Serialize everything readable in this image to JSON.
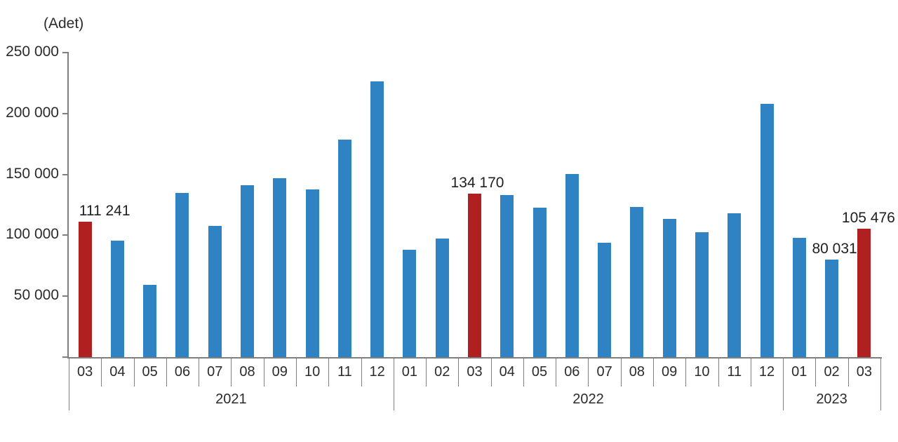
{
  "chart_data": {
    "type": "bar",
    "title": "",
    "unit_label": "(Adet)",
    "ylim": [
      0,
      250000
    ],
    "grid": false,
    "legend": null,
    "colors": {
      "bar": "#3083c3",
      "highlight": "#b02020",
      "axis": "#7f7f7f",
      "text": "#2b2b2b"
    },
    "yticks": [
      {
        "value": 50000,
        "label": "50 000"
      },
      {
        "value": 100000,
        "label": "100 000"
      },
      {
        "value": 150000,
        "label": "150 000"
      },
      {
        "value": 200000,
        "label": "200 000"
      },
      {
        "value": 250000,
        "label": "250 000"
      }
    ],
    "groups": [
      {
        "year": "2021",
        "categories": [
          "03",
          "04",
          "05",
          "06",
          "07",
          "08",
          "09",
          "10",
          "11",
          "12"
        ],
        "values": [
          111241,
          95900,
          59200,
          134700,
          107800,
          141400,
          147100,
          137400,
          178800,
          226500
        ]
      },
      {
        "year": "2022",
        "categories": [
          "01",
          "02",
          "03",
          "04",
          "05",
          "06",
          "07",
          "08",
          "09",
          "10",
          "11",
          "12"
        ],
        "values": [
          88300,
          97600,
          134170,
          133000,
          122800,
          150500,
          93900,
          123500,
          113400,
          102700,
          117800,
          208000
        ]
      },
      {
        "year": "2023",
        "categories": [
          "01",
          "02",
          "03"
        ],
        "values": [
          97700,
          80031,
          105476
        ]
      }
    ],
    "highlighted": [
      {
        "year": "2021",
        "month": "03"
      },
      {
        "year": "2022",
        "month": "03"
      },
      {
        "year": "2023",
        "month": "03"
      }
    ],
    "annotations": [
      {
        "year": "2021",
        "month": "03",
        "text": "111 241",
        "dx": 28
      },
      {
        "year": "2022",
        "month": "03",
        "text": "134 170",
        "dx": 4
      },
      {
        "year": "2023",
        "month": "02",
        "text": "80 031",
        "dx": 4
      },
      {
        "year": "2023",
        "month": "03",
        "text": "105 476",
        "dx": 6
      }
    ]
  }
}
